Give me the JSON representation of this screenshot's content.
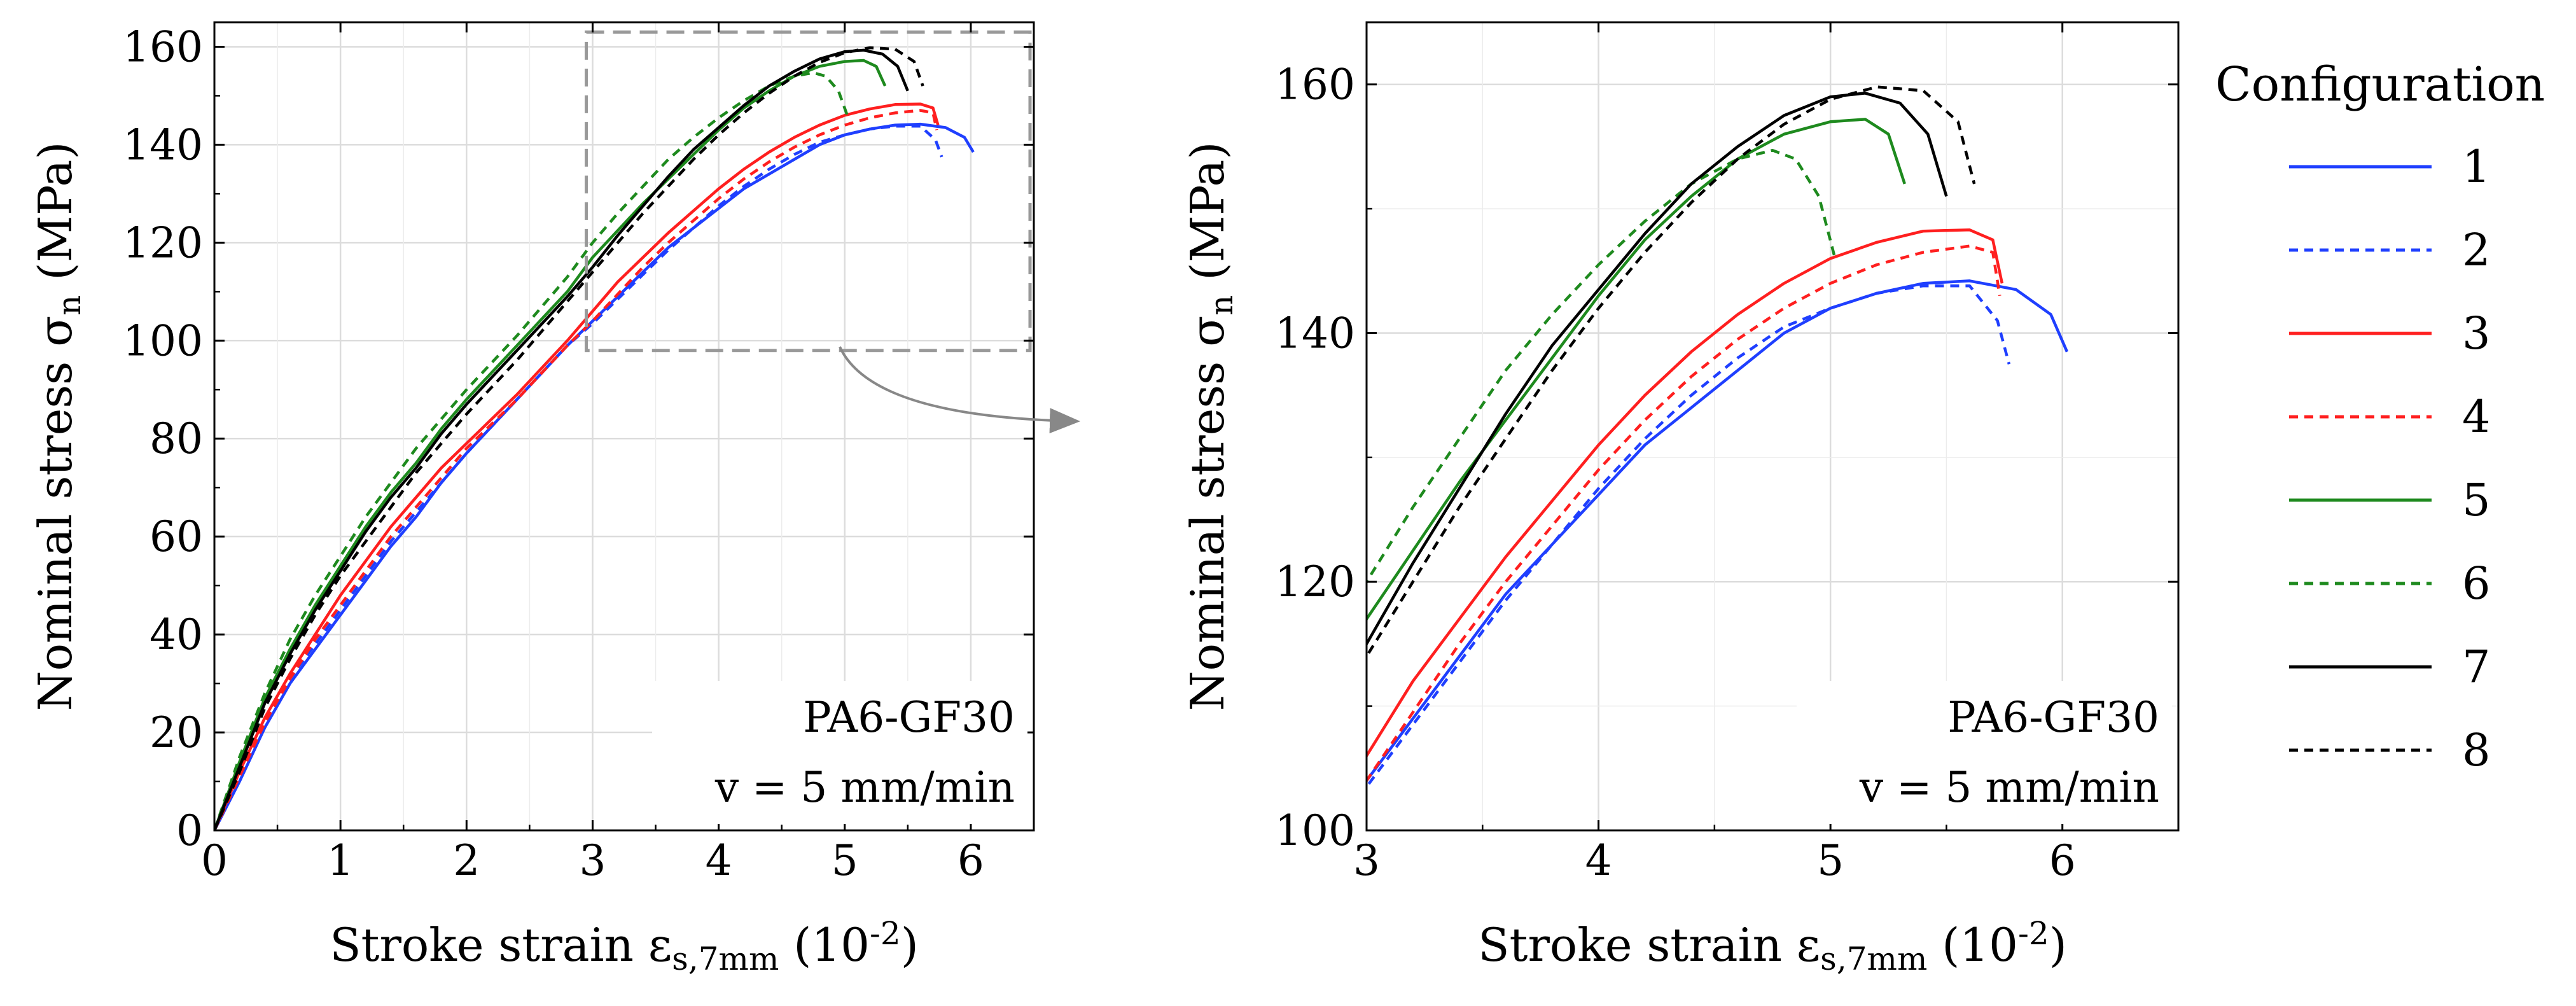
{
  "chart_data": [
    {
      "type": "line",
      "xlabel": {
        "main": "Stroke strain ε",
        "sub": "s,7mm",
        "unit": " (10",
        "sup": "-2",
        "close": ")"
      },
      "ylabel": {
        "main": "Nominal stress σ",
        "sub": "n",
        "unit": " (MPa)"
      },
      "xlim": [
        0,
        6.5
      ],
      "ylim": [
        0,
        165
      ],
      "xticks": [
        "0",
        "1",
        "2",
        "3",
        "4",
        "5",
        "6"
      ],
      "yticks": [
        "0",
        "20",
        "40",
        "60",
        "80",
        "100",
        "120",
        "140",
        "160"
      ],
      "grid": true,
      "annotation": {
        "line1": "PA6-GF30",
        "line2": "v = 5 mm/min"
      },
      "zoom_box": {
        "x": [
          2.95,
          6.5
        ],
        "y": [
          98,
          163
        ]
      }
    },
    {
      "type": "line",
      "xlabel": {
        "main": "Stroke strain ε",
        "sub": "s,7mm",
        "unit": " (10",
        "sup": "-2",
        "close": ")"
      },
      "ylabel": {
        "main": "Nominal stress σ",
        "sub": "n",
        "unit": " (MPa)"
      },
      "xlim": [
        3,
        6.5
      ],
      "ylim": [
        100,
        165
      ],
      "xticks": [
        "3",
        "4",
        "5",
        "6"
      ],
      "yticks": [
        "100",
        "120",
        "140",
        "160"
      ],
      "grid": true,
      "annotation": {
        "line1": "PA6-GF30",
        "line2": "v = 5 mm/min"
      }
    }
  ],
  "legend": {
    "title": "Configuration",
    "placement": "right"
  },
  "series": [
    {
      "name": "1",
      "color": "#1f3fff",
      "dash": "solid",
      "points": [
        [
          0,
          0
        ],
        [
          0.2,
          10
        ],
        [
          0.4,
          21
        ],
        [
          0.6,
          30
        ],
        [
          0.8,
          37
        ],
        [
          1.0,
          44
        ],
        [
          1.2,
          51
        ],
        [
          1.4,
          58
        ],
        [
          1.6,
          64
        ],
        [
          1.8,
          71
        ],
        [
          2.0,
          77
        ],
        [
          2.4,
          88
        ],
        [
          2.8,
          99
        ],
        [
          3.0,
          104
        ],
        [
          3.2,
          109
        ],
        [
          3.4,
          114
        ],
        [
          3.6,
          119
        ],
        [
          3.8,
          123
        ],
        [
          4.0,
          127
        ],
        [
          4.2,
          131
        ],
        [
          4.4,
          134
        ],
        [
          4.6,
          137
        ],
        [
          4.8,
          140
        ],
        [
          5.0,
          142
        ],
        [
          5.2,
          143.2
        ],
        [
          5.4,
          144
        ],
        [
          5.6,
          144.2
        ],
        [
          5.8,
          143.5
        ],
        [
          5.95,
          141.5
        ],
        [
          6.02,
          138.5
        ]
      ]
    },
    {
      "name": "2",
      "color": "#1f3fff",
      "dash": "dashed",
      "points": [
        [
          0,
          0
        ],
        [
          0.2,
          11
        ],
        [
          0.4,
          22
        ],
        [
          0.6,
          31
        ],
        [
          0.8,
          38
        ],
        [
          1.0,
          45
        ],
        [
          1.2,
          52
        ],
        [
          1.4,
          59
        ],
        [
          1.6,
          65
        ],
        [
          1.8,
          71
        ],
        [
          2.0,
          77
        ],
        [
          2.4,
          88
        ],
        [
          2.8,
          99
        ],
        [
          3.0,
          103.5
        ],
        [
          3.2,
          108.5
        ],
        [
          3.4,
          113.5
        ],
        [
          3.6,
          118.5
        ],
        [
          3.8,
          123
        ],
        [
          4.0,
          127.5
        ],
        [
          4.2,
          131.5
        ],
        [
          4.4,
          135
        ],
        [
          4.6,
          138
        ],
        [
          4.8,
          140.5
        ],
        [
          5.0,
          142
        ],
        [
          5.2,
          143.2
        ],
        [
          5.4,
          143.8
        ],
        [
          5.6,
          143.8
        ],
        [
          5.72,
          141
        ],
        [
          5.77,
          137.5
        ]
      ]
    },
    {
      "name": "3",
      "color": "#ff1f1f",
      "dash": "solid",
      "points": [
        [
          0,
          0
        ],
        [
          0.2,
          12
        ],
        [
          0.4,
          23
        ],
        [
          0.6,
          32
        ],
        [
          0.8,
          40
        ],
        [
          1.0,
          48
        ],
        [
          1.2,
          55
        ],
        [
          1.4,
          62
        ],
        [
          1.6,
          68
        ],
        [
          1.8,
          74
        ],
        [
          2.0,
          79
        ],
        [
          2.4,
          89
        ],
        [
          2.8,
          100
        ],
        [
          3.0,
          106
        ],
        [
          3.2,
          112
        ],
        [
          3.4,
          117
        ],
        [
          3.6,
          122
        ],
        [
          3.8,
          126.5
        ],
        [
          4.0,
          131
        ],
        [
          4.2,
          135
        ],
        [
          4.4,
          138.5
        ],
        [
          4.6,
          141.5
        ],
        [
          4.8,
          144
        ],
        [
          5.0,
          146
        ],
        [
          5.2,
          147.3
        ],
        [
          5.4,
          148.2
        ],
        [
          5.6,
          148.3
        ],
        [
          5.7,
          147.5
        ],
        [
          5.74,
          144
        ]
      ]
    },
    {
      "name": "4",
      "color": "#ff1f1f",
      "dash": "dashed",
      "points": [
        [
          0,
          0
        ],
        [
          0.2,
          11
        ],
        [
          0.4,
          22
        ],
        [
          0.6,
          31
        ],
        [
          0.8,
          39
        ],
        [
          1.0,
          46
        ],
        [
          1.2,
          53
        ],
        [
          1.4,
          60
        ],
        [
          1.6,
          66
        ],
        [
          1.8,
          72
        ],
        [
          2.0,
          78
        ],
        [
          2.4,
          88
        ],
        [
          2.8,
          99
        ],
        [
          3.0,
          104
        ],
        [
          3.2,
          109.5
        ],
        [
          3.4,
          115
        ],
        [
          3.6,
          120
        ],
        [
          3.8,
          124.5
        ],
        [
          4.0,
          129
        ],
        [
          4.2,
          133
        ],
        [
          4.4,
          136.5
        ],
        [
          4.6,
          139.5
        ],
        [
          4.8,
          142
        ],
        [
          5.0,
          144
        ],
        [
          5.2,
          145.5
        ],
        [
          5.4,
          146.5
        ],
        [
          5.6,
          147
        ],
        [
          5.7,
          146.5
        ],
        [
          5.73,
          143
        ]
      ]
    },
    {
      "name": "5",
      "color": "#1e8a1e",
      "dash": "solid",
      "points": [
        [
          0,
          0
        ],
        [
          0.2,
          14
        ],
        [
          0.4,
          27
        ],
        [
          0.6,
          37
        ],
        [
          0.8,
          46
        ],
        [
          1.0,
          54
        ],
        [
          1.2,
          62
        ],
        [
          1.4,
          69
        ],
        [
          1.6,
          75
        ],
        [
          1.8,
          82
        ],
        [
          2.0,
          88
        ],
        [
          2.4,
          99
        ],
        [
          2.8,
          110
        ],
        [
          3.0,
          117
        ],
        [
          3.2,
          122.5
        ],
        [
          3.4,
          128
        ],
        [
          3.6,
          133
        ],
        [
          3.8,
          138
        ],
        [
          4.0,
          143
        ],
        [
          4.2,
          147.5
        ],
        [
          4.4,
          151
        ],
        [
          4.6,
          154
        ],
        [
          4.8,
          156
        ],
        [
          5.0,
          157
        ],
        [
          5.15,
          157.2
        ],
        [
          5.25,
          156
        ],
        [
          5.32,
          152
        ]
      ]
    },
    {
      "name": "6",
      "color": "#1e8a1e",
      "dash": "dashed",
      "points": [
        [
          0,
          0
        ],
        [
          0.2,
          15
        ],
        [
          0.4,
          28
        ],
        [
          0.6,
          39
        ],
        [
          0.8,
          48
        ],
        [
          1.0,
          56
        ],
        [
          1.2,
          64
        ],
        [
          1.4,
          71
        ],
        [
          1.6,
          78
        ],
        [
          1.8,
          84
        ],
        [
          2.0,
          90
        ],
        [
          2.4,
          101
        ],
        [
          2.8,
          113
        ],
        [
          3.0,
          120
        ],
        [
          3.2,
          126
        ],
        [
          3.4,
          131.5
        ],
        [
          3.6,
          137
        ],
        [
          3.8,
          141.5
        ],
        [
          4.0,
          145.5
        ],
        [
          4.2,
          149
        ],
        [
          4.4,
          152
        ],
        [
          4.6,
          154
        ],
        [
          4.75,
          154.7
        ],
        [
          4.85,
          154
        ],
        [
          4.95,
          151
        ],
        [
          5.02,
          146
        ]
      ]
    },
    {
      "name": "7",
      "color": "#000000",
      "dash": "solid",
      "points": [
        [
          0,
          0
        ],
        [
          0.2,
          13
        ],
        [
          0.4,
          26
        ],
        [
          0.6,
          36
        ],
        [
          0.8,
          45
        ],
        [
          1.0,
          53
        ],
        [
          1.2,
          61
        ],
        [
          1.4,
          68
        ],
        [
          1.6,
          74
        ],
        [
          1.8,
          81
        ],
        [
          2.0,
          87
        ],
        [
          2.4,
          98
        ],
        [
          2.8,
          109
        ],
        [
          3.0,
          115
        ],
        [
          3.2,
          121.5
        ],
        [
          3.4,
          127.5
        ],
        [
          3.6,
          133.5
        ],
        [
          3.8,
          139
        ],
        [
          4.0,
          143.5
        ],
        [
          4.2,
          148
        ],
        [
          4.4,
          152
        ],
        [
          4.6,
          155
        ],
        [
          4.8,
          157.5
        ],
        [
          5.0,
          159
        ],
        [
          5.15,
          159.3
        ],
        [
          5.3,
          158.5
        ],
        [
          5.42,
          156
        ],
        [
          5.5,
          151
        ]
      ]
    },
    {
      "name": "8",
      "color": "#000000",
      "dash": "dashed",
      "points": [
        [
          0,
          0
        ],
        [
          0.2,
          12
        ],
        [
          0.4,
          25
        ],
        [
          0.6,
          35
        ],
        [
          0.8,
          44
        ],
        [
          1.0,
          52
        ],
        [
          1.2,
          59
        ],
        [
          1.4,
          66
        ],
        [
          1.6,
          73
        ],
        [
          1.8,
          79
        ],
        [
          2.0,
          85
        ],
        [
          2.4,
          96
        ],
        [
          2.8,
          108
        ],
        [
          3.0,
          114
        ],
        [
          3.2,
          120
        ],
        [
          3.4,
          126
        ],
        [
          3.6,
          131.5
        ],
        [
          3.8,
          137
        ],
        [
          4.0,
          142
        ],
        [
          4.2,
          146.5
        ],
        [
          4.4,
          150.5
        ],
        [
          4.6,
          154
        ],
        [
          4.8,
          156.8
        ],
        [
          5.0,
          158.8
        ],
        [
          5.2,
          159.8
        ],
        [
          5.4,
          159.5
        ],
        [
          5.55,
          157
        ],
        [
          5.62,
          152
        ]
      ]
    }
  ]
}
